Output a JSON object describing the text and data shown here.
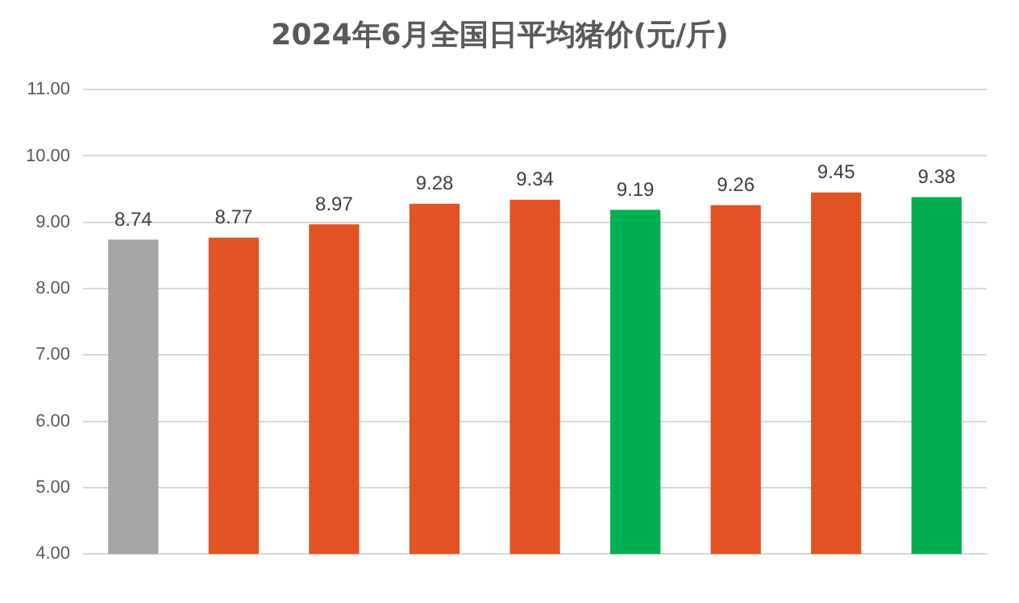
{
  "chart_data": {
    "type": "bar",
    "title": "2024年6月全国日平均猪价(元/斤)",
    "categories": [
      null,
      null,
      null,
      null,
      null,
      null,
      null,
      null,
      null
    ],
    "values": [
      8.74,
      8.77,
      8.97,
      9.28,
      9.34,
      9.19,
      9.26,
      9.45,
      9.38
    ],
    "colors": [
      "#a5a5a5",
      "#e15325",
      "#e15325",
      "#e15325",
      "#e15325",
      "#00b050",
      "#e15325",
      "#e15325",
      "#00b050"
    ],
    "ylim": [
      4,
      11
    ],
    "yticks": [
      {
        "value": 4,
        "label": "4.00"
      },
      {
        "value": 5,
        "label": "5.00"
      },
      {
        "value": 6,
        "label": "6.00"
      },
      {
        "value": 7,
        "label": "7.00"
      },
      {
        "value": 8,
        "label": "8.00"
      },
      {
        "value": 9,
        "label": "9.00"
      },
      {
        "value": 10,
        "label": "10.00"
      },
      {
        "value": 11,
        "label": "11.00"
      }
    ],
    "grid": "y",
    "data_labels": true
  }
}
